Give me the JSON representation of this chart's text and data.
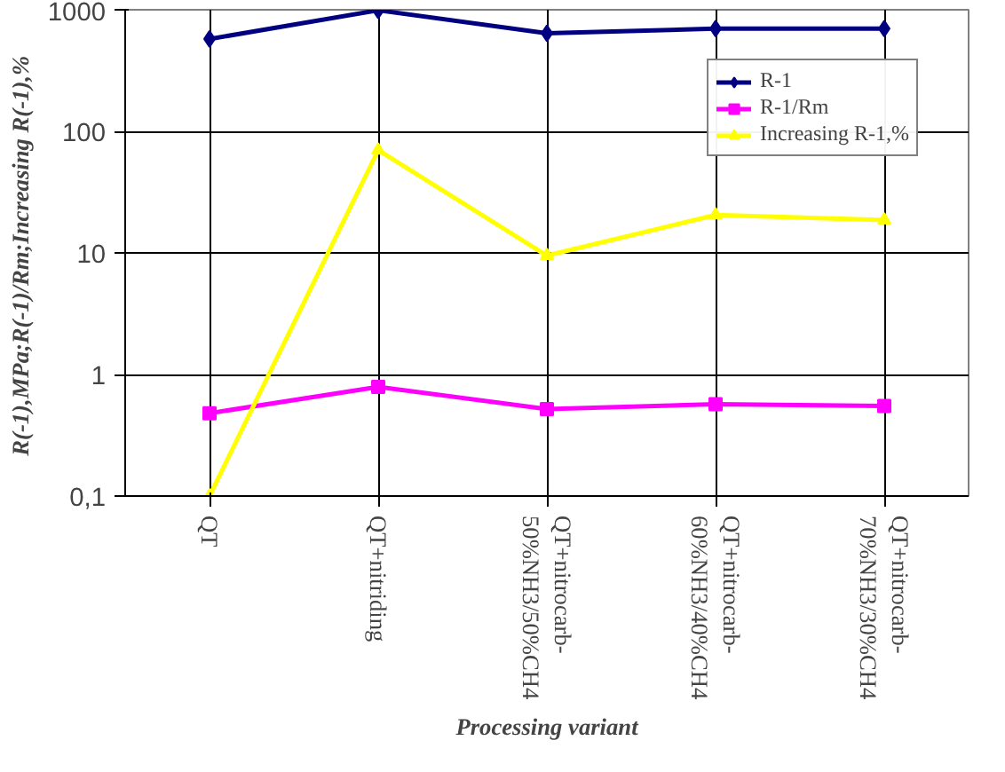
{
  "chart_data": {
    "type": "line",
    "xlabel": "Processing variant",
    "ylabel": "R(-1),MPa;R(-1)/Rm;Increasing  R(-1),%",
    "categories": [
      "QT",
      "QT+nitriding",
      "QT+nitrocarb-\n50%NH3/50%CH4",
      "QT+nitrocarb-\n60%NH3/40%CH4",
      "QT+nitrocarb-\n70%NH3/30%CH4"
    ],
    "log": "y",
    "ylim": [
      0.1,
      1000
    ],
    "yticks": [
      {
        "value": 0.1,
        "label": "0,1"
      },
      1,
      10,
      100,
      1000
    ],
    "grid": true,
    "legend": "top right",
    "series": [
      {
        "name": "R-1",
        "color": "#000080",
        "marker": "diamond",
        "values": [
          575,
          990,
          640,
          700,
          700
        ]
      },
      {
        "name": "R-1/Rm",
        "color": "#ff00ff",
        "marker": "square",
        "values": [
          0.48,
          0.79,
          0.52,
          0.57,
          0.55
        ]
      },
      {
        "name": "Increasing R-1,%",
        "color": "#ffff00",
        "marker": "triangle",
        "values": [
          0.1,
          70,
          9.5,
          20.5,
          18.6
        ]
      }
    ]
  }
}
